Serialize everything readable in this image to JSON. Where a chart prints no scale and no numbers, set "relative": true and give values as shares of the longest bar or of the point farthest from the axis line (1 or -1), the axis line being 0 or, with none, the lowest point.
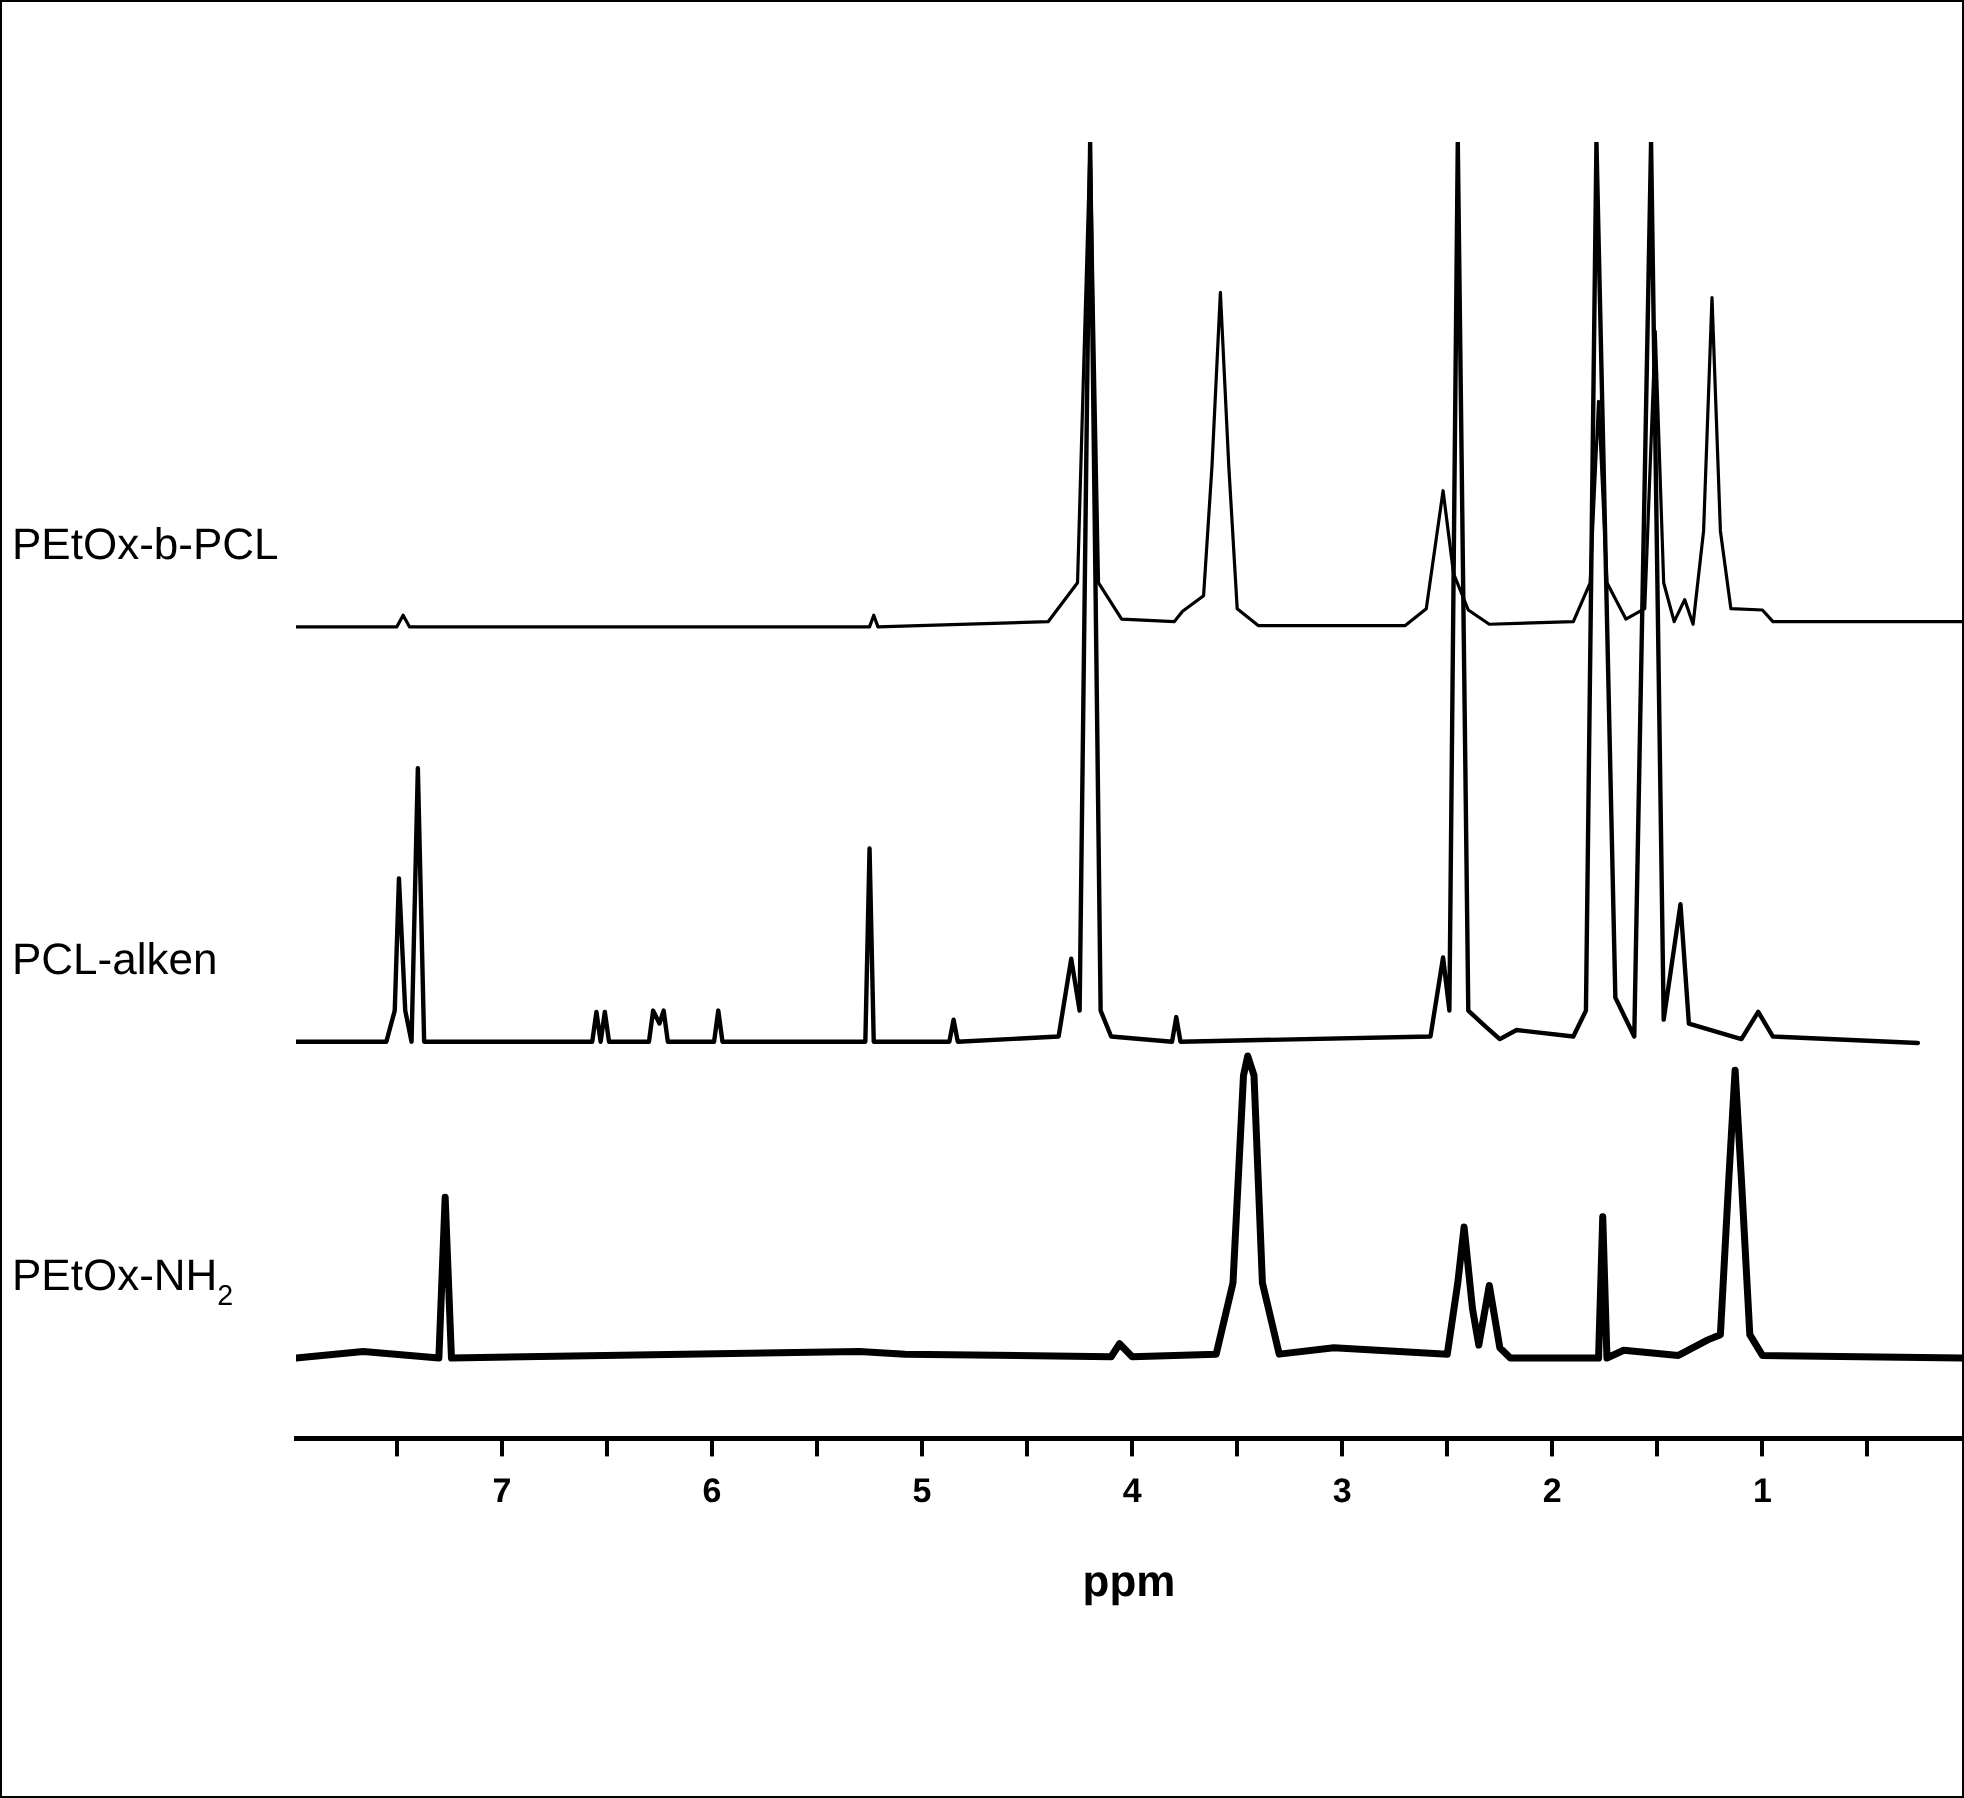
{
  "chart_data": {
    "type": "line",
    "relative": true,
    "xlabel": "ppm",
    "xlim": [
      7.98,
      0.05
    ],
    "xticks": [
      {
        "value": 7.5,
        "label": null
      },
      7,
      {
        "value": 6.5,
        "label": null
      },
      6,
      {
        "value": 5.5,
        "label": null
      },
      5,
      {
        "value": 4.5,
        "label": null
      },
      4,
      {
        "value": 3.5,
        "label": null
      },
      3,
      {
        "value": 2.5,
        "label": null
      },
      2,
      {
        "value": 1.5,
        "label": null
      },
      1,
      {
        "value": 0.5,
        "label": null
      }
    ],
    "grid": false,
    "legend": false,
    "marker": "none",
    "line_style": "solid",
    "series": [
      {
        "name": "PEtOx-b-PCL",
        "color": "#000000",
        "x": [
          7.98,
          7.5,
          7.47,
          7.44,
          5.25,
          5.23,
          5.21,
          4.4,
          4.26,
          4.2,
          4.16,
          4.05,
          3.8,
          3.76,
          3.66,
          3.62,
          3.58,
          3.54,
          3.5,
          3.4,
          2.7,
          2.6,
          2.52,
          2.47,
          2.4,
          2.3,
          1.9,
          1.82,
          1.78,
          1.74,
          1.65,
          1.56,
          1.51,
          1.47,
          1.42,
          1.37,
          1.33,
          1.28,
          1.24,
          1.2,
          1.15,
          1.0,
          0.95,
          0.05
        ],
        "values": [
          0.626,
          0.626,
          0.635,
          0.626,
          0.626,
          0.635,
          0.626,
          0.63,
          0.66,
          1,
          0.66,
          0.632,
          0.63,
          0.638,
          0.65,
          0.75,
          0.884,
          0.75,
          0.64,
          0.627,
          0.627,
          0.64,
          0.731,
          0.667,
          0.639,
          0.628,
          0.63,
          0.66,
          0.8,
          0.66,
          0.632,
          0.64,
          0.854,
          0.66,
          0.63,
          0.647,
          0.628,
          0.7,
          0.88,
          0.7,
          0.64,
          0.639,
          0.63,
          0.63
        ]
      },
      {
        "name": "PCL-alken",
        "color": "#000000",
        "x": [
          7.98,
          7.55,
          7.51,
          7.49,
          7.46,
          7.43,
          7.4,
          7.37,
          6.57,
          6.55,
          6.53,
          6.51,
          6.49,
          6.3,
          6.28,
          6.25,
          6.23,
          6.21,
          5.99,
          5.97,
          5.95,
          5.27,
          5.25,
          5.23,
          4.87,
          4.85,
          4.83,
          4.35,
          4.29,
          4.25,
          4.2,
          4.15,
          4.1,
          3.81,
          3.79,
          3.77,
          2.58,
          2.52,
          2.49,
          2.45,
          2.4,
          2.32,
          2.25,
          2.17,
          1.9,
          1.84,
          1.79,
          1.7,
          1.61,
          1.53,
          1.47,
          1.39,
          1.35,
          1.1,
          1.02,
          0.95,
          0.26
        ],
        "values": [
          0.306,
          0.306,
          0.33,
          0.432,
          0.33,
          0.306,
          0.517,
          0.306,
          0.306,
          0.329,
          0.306,
          0.329,
          0.306,
          0.306,
          0.33,
          0.32,
          0.33,
          0.306,
          0.306,
          0.33,
          0.306,
          0.306,
          0.455,
          0.306,
          0.306,
          0.323,
          0.306,
          0.31,
          0.37,
          0.33,
          1,
          0.33,
          0.31,
          0.306,
          0.325,
          0.306,
          0.31,
          0.371,
          0.33,
          1,
          0.33,
          0.318,
          0.308,
          0.315,
          0.31,
          0.33,
          1,
          0.34,
          0.31,
          1,
          0.323,
          0.412,
          0.32,
          0.308,
          0.329,
          0.31,
          0.305
        ]
      },
      {
        "name": "PEtOx-NH$_{2}$",
        "color": "#000000",
        "x": [
          7.98,
          7.66,
          7.3,
          7.27,
          7.24,
          5.3,
          5.08,
          4.1,
          4.06,
          4.0,
          3.6,
          3.52,
          3.47,
          3.45,
          3.42,
          3.38,
          3.3,
          3.04,
          2.5,
          2.45,
          2.42,
          2.38,
          2.35,
          2.3,
          2.25,
          2.2,
          1.78,
          1.76,
          1.74,
          1.66,
          1.4,
          1.26,
          1.2,
          1.16,
          1.13,
          1.1,
          1.06,
          1.0,
          0.05
        ],
        "values": [
          0.062,
          0.067,
          0.062,
          0.186,
          0.062,
          0.067,
          0.065,
          0.063,
          0.073,
          0.063,
          0.065,
          0.12,
          0.28,
          0.295,
          0.28,
          0.12,
          0.065,
          0.07,
          0.065,
          0.12,
          0.163,
          0.1,
          0.072,
          0.118,
          0.07,
          0.062,
          0.062,
          0.171,
          0.062,
          0.068,
          0.064,
          0.076,
          0.08,
          0.2,
          0.284,
          0.2,
          0.08,
          0.064,
          0.062
        ]
      }
    ]
  }
}
